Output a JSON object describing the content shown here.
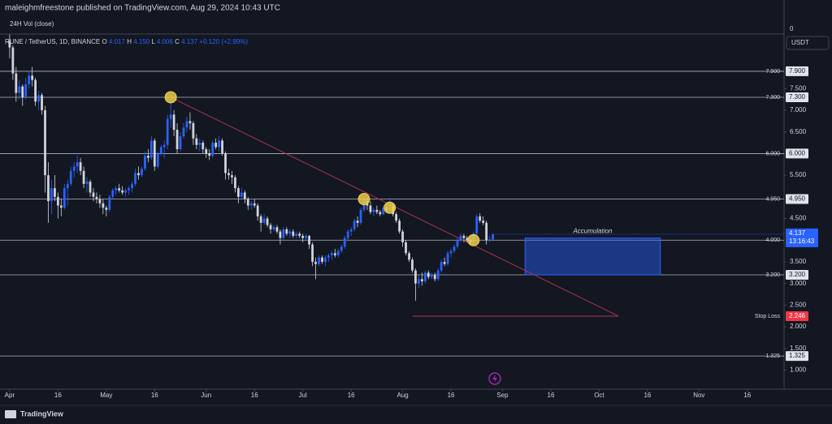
{
  "chart_data": {
    "type": "candlestick",
    "header": "maleighmfreestone published on TradingView.com, Aug 29, 2024 10:43 UTC",
    "volume_pane": {
      "title": "24H Vol (close)",
      "axis_label": 0
    },
    "currency": "USDT",
    "legend": {
      "symbol": "RUNE / TetherUS, 1D, BINANCE",
      "items": [
        {
          "key": "O",
          "value": "4.017"
        },
        {
          "key": "H",
          "value": "4.150"
        },
        {
          "key": "L",
          "value": "4.006"
        },
        {
          "key": "C",
          "value": "4.137"
        }
      ],
      "change": "+0.120 (+2.99%)"
    },
    "up_color": "#2962ff",
    "down_color": "#d1d4dc",
    "xlim": [
      -3,
      240.4
    ],
    "ylim": [
      0.56,
      8.76
    ],
    "xticks": [
      {
        "value": 0,
        "label": "Apr"
      },
      {
        "value": 15,
        "label": "16"
      },
      {
        "value": 30,
        "label": "May"
      },
      {
        "value": 45,
        "label": "16"
      },
      {
        "value": 61,
        "label": "Jun"
      },
      {
        "value": 76,
        "label": "16"
      },
      {
        "value": 91,
        "label": "Jul"
      },
      {
        "value": 106,
        "label": "16"
      },
      {
        "value": 122,
        "label": "Aug"
      },
      {
        "value": 137,
        "label": "16"
      },
      {
        "value": 153,
        "label": "Sep"
      },
      {
        "value": 168,
        "label": "16"
      },
      {
        "value": 183,
        "label": "Oct"
      },
      {
        "value": 198,
        "label": "16"
      },
      {
        "value": 214,
        "label": "Nov"
      },
      {
        "value": 229,
        "label": "16"
      }
    ],
    "yticks": [
      {
        "value": 7.5,
        "label": "7.500"
      },
      {
        "value": 7,
        "label": "7.000"
      },
      {
        "value": 6.5,
        "label": "6.500"
      },
      {
        "value": 5.5,
        "label": "5.500"
      },
      {
        "value": 4.5,
        "label": "4.500"
      },
      {
        "value": 3.5,
        "label": "3.500"
      },
      {
        "value": 3,
        "label": "3.000"
      },
      {
        "value": 2.5,
        "label": "2.500"
      },
      {
        "value": 2,
        "label": "2.000"
      },
      {
        "value": 1.5,
        "label": "1.500"
      },
      {
        "value": 1,
        "label": "1.000"
      }
    ],
    "levels": [
      {
        "value": 7.9,
        "label": "7.900"
      },
      {
        "value": 7.3,
        "label": "7.300"
      },
      {
        "value": 6,
        "label": "6.000"
      },
      {
        "value": 4.95,
        "label": "4.950"
      },
      {
        "value": 4,
        "label": "4.000"
      },
      {
        "value": 3.2,
        "label": "3.200"
      },
      {
        "value": 1.325,
        "label": "1.325"
      }
    ],
    "stop_loss": {
      "name": "Stop Loss",
      "value": 2.246,
      "label": "2.246",
      "x": [
        125,
        189
      ]
    },
    "trendline": {
      "x": [
        50,
        189
      ],
      "y": [
        7.3,
        2.246
      ]
    },
    "markers": {
      "x": [
        50,
        110,
        118,
        144
      ],
      "y": [
        7.3,
        4.95,
        4.75,
        4.0
      ]
    },
    "zone": {
      "name": "Accumulation",
      "x": [
        160,
        202
      ],
      "y": [
        3.2,
        4.05
      ]
    },
    "last_price": {
      "value": 4.137,
      "label": "4.137",
      "countdown": "13:16:43"
    },
    "candles": [
      [
        8.6,
        8.75,
        8.2,
        8.45
      ],
      [
        8.45,
        8.5,
        7.7,
        7.85
      ],
      [
        7.85,
        8.0,
        7.2,
        7.4
      ],
      [
        7.4,
        7.7,
        7.25,
        7.55
      ],
      [
        7.55,
        7.6,
        7.1,
        7.3
      ],
      [
        7.3,
        7.75,
        7.25,
        7.6
      ],
      [
        7.6,
        7.9,
        7.5,
        7.8
      ],
      [
        7.8,
        8.0,
        7.55,
        7.7
      ],
      [
        7.7,
        7.75,
        7.1,
        7.2
      ],
      [
        7.2,
        7.45,
        7.0,
        7.35
      ],
      [
        7.35,
        7.4,
        6.9,
        7.0
      ],
      [
        7.0,
        7.1,
        5.1,
        5.5
      ],
      [
        5.5,
        5.8,
        4.4,
        4.9
      ],
      [
        4.9,
        5.4,
        4.6,
        5.2
      ],
      [
        5.2,
        5.5,
        4.9,
        5.0
      ],
      [
        5.0,
        5.1,
        4.5,
        4.8
      ],
      [
        4.8,
        4.95,
        4.55,
        4.75
      ],
      [
        4.75,
        5.3,
        4.7,
        5.2
      ],
      [
        5.2,
        5.4,
        4.8,
        5.3
      ],
      [
        5.3,
        5.7,
        5.25,
        5.6
      ],
      [
        5.6,
        5.8,
        5.45,
        5.7
      ],
      [
        5.7,
        5.95,
        5.55,
        5.8
      ],
      [
        5.8,
        5.9,
        5.5,
        5.6
      ],
      [
        5.6,
        5.7,
        5.2,
        5.3
      ],
      [
        5.3,
        5.45,
        5.1,
        5.35
      ],
      [
        5.35,
        5.4,
        5.0,
        5.1
      ],
      [
        5.1,
        5.2,
        4.9,
        5.0
      ],
      [
        5.0,
        5.1,
        4.85,
        4.95
      ],
      [
        4.95,
        5.05,
        4.75,
        4.85
      ],
      [
        4.85,
        4.95,
        4.6,
        4.75
      ],
      [
        4.75,
        4.8,
        4.55,
        4.7
      ],
      [
        4.7,
        5.05,
        4.65,
        5.0
      ],
      [
        5.0,
        5.2,
        4.95,
        5.15
      ],
      [
        5.15,
        5.25,
        5.05,
        5.2
      ],
      [
        5.2,
        5.3,
        5.1,
        5.15
      ],
      [
        5.15,
        5.25,
        5.05,
        5.1
      ],
      [
        5.1,
        5.2,
        5.0,
        5.15
      ],
      [
        5.15,
        5.25,
        5.05,
        5.2
      ],
      [
        5.2,
        5.35,
        5.1,
        5.3
      ],
      [
        5.3,
        5.65,
        5.25,
        5.55
      ],
      [
        5.55,
        5.7,
        5.4,
        5.5
      ],
      [
        5.5,
        5.7,
        5.45,
        5.65
      ],
      [
        5.65,
        6.05,
        5.6,
        5.95
      ],
      [
        5.95,
        6.1,
        5.8,
        5.9
      ],
      [
        5.9,
        6.4,
        5.85,
        6.3
      ],
      [
        6.3,
        6.35,
        5.6,
        5.7
      ],
      [
        5.7,
        6.05,
        5.65,
        6.0
      ],
      [
        6.0,
        6.2,
        5.95,
        6.15
      ],
      [
        6.15,
        6.3,
        5.9,
        6.2
      ],
      [
        6.2,
        6.9,
        6.1,
        6.8
      ],
      [
        6.8,
        7.35,
        6.6,
        6.9
      ],
      [
        6.9,
        7.0,
        6.4,
        6.55
      ],
      [
        6.55,
        6.7,
        6.0,
        6.1
      ],
      [
        6.1,
        6.5,
        6.05,
        6.4
      ],
      [
        6.4,
        6.7,
        6.35,
        6.6
      ],
      [
        6.6,
        6.85,
        6.5,
        6.75
      ],
      [
        6.75,
        6.95,
        6.55,
        6.7
      ],
      [
        6.7,
        6.75,
        6.2,
        6.35
      ],
      [
        6.35,
        6.45,
        6.1,
        6.2
      ],
      [
        6.2,
        6.35,
        6.05,
        6.25
      ],
      [
        6.25,
        6.3,
        6.0,
        6.1
      ],
      [
        6.1,
        6.15,
        5.9,
        6.0
      ],
      [
        6.0,
        6.1,
        5.85,
        5.95
      ],
      [
        5.95,
        6.3,
        5.9,
        6.25
      ],
      [
        6.25,
        6.35,
        6.1,
        6.15
      ],
      [
        6.15,
        6.4,
        6.05,
        6.3
      ],
      [
        6.3,
        6.35,
        5.95,
        6.0
      ],
      [
        6.0,
        6.05,
        5.4,
        5.55
      ],
      [
        5.55,
        5.65,
        5.4,
        5.5
      ],
      [
        5.5,
        5.6,
        5.3,
        5.45
      ],
      [
        5.45,
        5.5,
        5.1,
        5.2
      ],
      [
        5.2,
        5.25,
        4.85,
        5.0
      ],
      [
        5.0,
        5.2,
        4.95,
        5.1
      ],
      [
        5.1,
        5.15,
        4.85,
        4.95
      ],
      [
        4.95,
        5.0,
        4.7,
        4.8
      ],
      [
        4.8,
        4.9,
        4.7,
        4.85
      ],
      [
        4.85,
        4.95,
        4.75,
        4.8
      ],
      [
        4.8,
        4.85,
        4.45,
        4.55
      ],
      [
        4.55,
        4.6,
        4.2,
        4.4
      ],
      [
        4.4,
        4.6,
        4.35,
        4.5
      ],
      [
        4.5,
        4.55,
        4.3,
        4.35
      ],
      [
        4.35,
        4.4,
        4.15,
        4.25
      ],
      [
        4.25,
        4.35,
        4.2,
        4.3
      ],
      [
        4.3,
        4.35,
        4.15,
        4.2
      ],
      [
        4.2,
        4.25,
        3.9,
        4.05
      ],
      [
        4.05,
        4.3,
        4.0,
        4.25
      ],
      [
        4.25,
        4.3,
        4.1,
        4.15
      ],
      [
        4.15,
        4.25,
        4.05,
        4.2
      ],
      [
        4.2,
        4.25,
        4.05,
        4.1
      ],
      [
        4.1,
        4.2,
        4.05,
        4.15
      ],
      [
        4.15,
        4.2,
        4.05,
        4.1
      ],
      [
        4.1,
        4.15,
        3.95,
        4.05
      ],
      [
        4.05,
        4.15,
        4.0,
        4.1
      ],
      [
        4.1,
        4.12,
        3.8,
        3.9
      ],
      [
        3.9,
        3.95,
        3.4,
        3.5
      ],
      [
        3.5,
        3.6,
        3.1,
        3.45
      ],
      [
        3.45,
        3.65,
        3.4,
        3.6
      ],
      [
        3.6,
        3.65,
        3.45,
        3.5
      ],
      [
        3.5,
        3.65,
        3.4,
        3.6
      ],
      [
        3.6,
        3.7,
        3.5,
        3.65
      ],
      [
        3.65,
        3.75,
        3.55,
        3.7
      ],
      [
        3.7,
        3.8,
        3.6,
        3.65
      ],
      [
        3.65,
        3.8,
        3.6,
        3.75
      ],
      [
        3.75,
        3.9,
        3.7,
        3.85
      ],
      [
        3.85,
        4.1,
        3.8,
        4.05
      ],
      [
        4.05,
        4.25,
        4.0,
        4.2
      ],
      [
        4.2,
        4.3,
        4.1,
        4.25
      ],
      [
        4.25,
        4.5,
        4.2,
        4.45
      ],
      [
        4.45,
        4.55,
        4.3,
        4.4
      ],
      [
        4.4,
        4.75,
        4.35,
        4.7
      ],
      [
        4.7,
        4.95,
        4.65,
        4.9
      ],
      [
        4.9,
        4.98,
        4.7,
        4.8
      ],
      [
        4.8,
        4.9,
        4.6,
        4.65
      ],
      [
        4.65,
        4.75,
        4.55,
        4.7
      ],
      [
        4.7,
        4.8,
        4.6,
        4.65
      ],
      [
        4.65,
        4.7,
        4.55,
        4.6
      ],
      [
        4.6,
        4.8,
        4.58,
        4.75
      ],
      [
        4.75,
        4.85,
        4.65,
        4.7
      ],
      [
        4.7,
        4.98,
        4.65,
        4.8
      ],
      [
        4.8,
        4.85,
        4.55,
        4.6
      ],
      [
        4.6,
        4.65,
        4.4,
        4.45
      ],
      [
        4.45,
        4.5,
        4.15,
        4.2
      ],
      [
        4.2,
        4.25,
        3.85,
        3.95
      ],
      [
        3.95,
        4.0,
        3.65,
        3.7
      ],
      [
        3.7,
        3.75,
        3.5,
        3.55
      ],
      [
        3.55,
        3.6,
        3.25,
        3.3
      ],
      [
        3.3,
        3.35,
        2.6,
        3.0
      ],
      [
        3.0,
        3.2,
        2.9,
        3.1
      ],
      [
        3.1,
        3.25,
        2.95,
        3.05
      ],
      [
        3.05,
        3.3,
        3.0,
        3.25
      ],
      [
        3.25,
        3.3,
        3.1,
        3.15
      ],
      [
        3.15,
        3.25,
        3.1,
        3.2
      ],
      [
        3.2,
        3.25,
        3.05,
        3.1
      ],
      [
        3.1,
        3.35,
        3.05,
        3.3
      ],
      [
        3.3,
        3.55,
        3.25,
        3.5
      ],
      [
        3.5,
        3.6,
        3.4,
        3.45
      ],
      [
        3.45,
        3.75,
        3.4,
        3.7
      ],
      [
        3.7,
        3.8,
        3.6,
        3.75
      ],
      [
        3.75,
        3.9,
        3.7,
        3.85
      ],
      [
        3.85,
        4.05,
        3.8,
        4.0
      ],
      [
        4.0,
        4.15,
        3.95,
        4.1
      ],
      [
        4.1,
        4.15,
        3.95,
        4.05
      ],
      [
        4.05,
        4.1,
        3.95,
        4.0
      ],
      [
        4.0,
        4.1,
        3.9,
        3.95
      ],
      [
        3.95,
        4.2,
        3.9,
        4.15
      ],
      [
        4.15,
        4.6,
        4.1,
        4.55
      ],
      [
        4.55,
        4.62,
        4.4,
        4.45
      ],
      [
        4.45,
        4.55,
        4.35,
        4.4
      ],
      [
        4.4,
        4.45,
        3.9,
        4.0
      ],
      [
        4.0,
        4.1,
        3.95,
        4.017
      ],
      [
        4.017,
        4.15,
        4.006,
        4.137
      ]
    ],
    "footer": "TradingView"
  }
}
